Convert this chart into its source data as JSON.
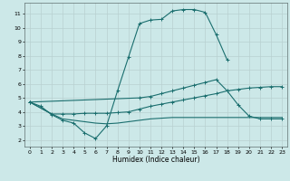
{
  "xlabel": "Humidex (Indice chaleur)",
  "bg_color": "#cce8e8",
  "grid_color": "#b8d0d0",
  "line_color": "#1a6e6e",
  "xlim": [
    -0.5,
    23.5
  ],
  "ylim": [
    1.5,
    11.8
  ],
  "x_ticks": [
    0,
    1,
    2,
    3,
    4,
    5,
    6,
    7,
    8,
    9,
    10,
    11,
    12,
    13,
    14,
    15,
    16,
    17,
    18,
    19,
    20,
    21,
    22,
    23
  ],
  "y_ticks": [
    2,
    3,
    4,
    5,
    6,
    7,
    8,
    9,
    10,
    11
  ],
  "series1_x": [
    0,
    1,
    2,
    3,
    4,
    5,
    6,
    7,
    8,
    9,
    10,
    11,
    12,
    13,
    14,
    15,
    16,
    17,
    18
  ],
  "series1_y": [
    4.7,
    4.4,
    3.8,
    3.4,
    3.2,
    2.5,
    2.1,
    3.0,
    5.5,
    7.9,
    10.3,
    10.55,
    10.6,
    11.2,
    11.3,
    11.3,
    11.1,
    9.5,
    7.7
  ],
  "series2_x": [
    0,
    2,
    3,
    4,
    5,
    6,
    7,
    8,
    9,
    10,
    11,
    12,
    13,
    14,
    15,
    16,
    17,
    18,
    19,
    20,
    21,
    22,
    23
  ],
  "series2_y": [
    4.7,
    3.85,
    3.5,
    3.4,
    3.3,
    3.2,
    3.15,
    3.2,
    3.3,
    3.4,
    3.5,
    3.55,
    3.6,
    3.6,
    3.6,
    3.6,
    3.6,
    3.6,
    3.6,
    3.6,
    3.6,
    3.6,
    3.6
  ],
  "series3_x": [
    0,
    2,
    3,
    4,
    5,
    6,
    7,
    8,
    9,
    10,
    11,
    12,
    13,
    14,
    15,
    16,
    17,
    18,
    19,
    20,
    21,
    22,
    23
  ],
  "series3_y": [
    4.7,
    3.85,
    3.85,
    3.85,
    3.9,
    3.9,
    3.9,
    3.95,
    4.0,
    4.2,
    4.4,
    4.55,
    4.7,
    4.85,
    5.0,
    5.15,
    5.3,
    5.5,
    5.6,
    5.7,
    5.75,
    5.8,
    5.8
  ],
  "series4_x": [
    0,
    10,
    11,
    12,
    13,
    14,
    15,
    16,
    17,
    18,
    19,
    20,
    21,
    22,
    23
  ],
  "series4_y": [
    4.7,
    5.0,
    5.1,
    5.3,
    5.5,
    5.7,
    5.9,
    6.1,
    6.3,
    5.5,
    4.5,
    3.7,
    3.5,
    3.5,
    3.5
  ]
}
